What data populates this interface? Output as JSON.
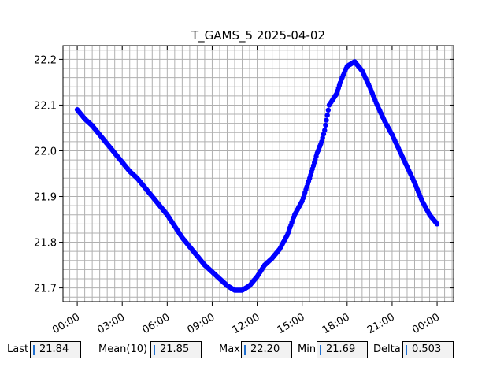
{
  "chart_data": {
    "type": "scatter",
    "title": "T_GAMS_5 2025-04-02",
    "xlabel": "",
    "ylabel": "",
    "x_unit": "hours",
    "xlim": [
      -0.95,
      25.1
    ],
    "ylim": [
      21.67,
      22.23
    ],
    "xticks": [
      0,
      3,
      6,
      9,
      12,
      15,
      18,
      21,
      24
    ],
    "xtick_labels": [
      "00:00",
      "03:00",
      "06:00",
      "09:00",
      "12:00",
      "15:00",
      "18:00",
      "21:00",
      "00:00"
    ],
    "yticks": [
      21.7,
      21.8,
      21.9,
      22.0,
      22.1,
      22.2
    ],
    "ytick_labels": [
      "21.7",
      "21.8",
      "21.9",
      "22.0",
      "22.1",
      "22.2"
    ],
    "grid": true,
    "marker_color": "#0000ff",
    "series": [
      {
        "x": [
          0.0,
          0.5,
          1.0,
          1.5,
          2.0,
          2.5,
          3.0,
          3.5,
          4.0,
          4.5,
          5.0,
          5.5,
          6.0,
          6.5,
          7.0,
          7.5,
          8.0,
          8.5,
          9.0,
          9.5,
          10.0,
          10.5,
          11.0,
          11.5,
          12.0,
          12.5,
          13.0,
          13.5,
          14.0,
          14.5,
          15.0,
          15.5,
          16.0,
          16.3,
          16.5,
          16.8,
          17.0,
          17.3,
          17.6,
          18.0,
          18.5,
          19.0,
          19.5,
          20.0,
          20.5,
          21.0,
          21.5,
          22.0,
          22.5,
          23.0,
          23.5,
          24.0
        ],
        "y": [
          22.09,
          22.07,
          22.055,
          22.035,
          22.015,
          21.995,
          21.975,
          21.955,
          21.94,
          21.92,
          21.9,
          21.88,
          21.86,
          21.835,
          21.81,
          21.79,
          21.77,
          21.75,
          21.735,
          21.72,
          21.705,
          21.695,
          21.695,
          21.705,
          21.725,
          21.75,
          21.765,
          21.785,
          21.815,
          21.86,
          21.89,
          21.94,
          21.995,
          22.02,
          22.045,
          22.1,
          22.11,
          22.125,
          22.155,
          22.185,
          22.195,
          22.175,
          22.14,
          22.1,
          22.065,
          22.035,
          22.0,
          21.965,
          21.93,
          21.89,
          21.86,
          21.84
        ]
      }
    ]
  },
  "stats": {
    "last_label": "Last",
    "last_value": "21.84",
    "mean_label": "Mean(10)",
    "mean_value": "21.85",
    "max_label": "Max",
    "max_value": "22.20",
    "min_label": "Min",
    "min_value": "21.69",
    "delta_label": "Delta",
    "delta_value": "0.503"
  }
}
